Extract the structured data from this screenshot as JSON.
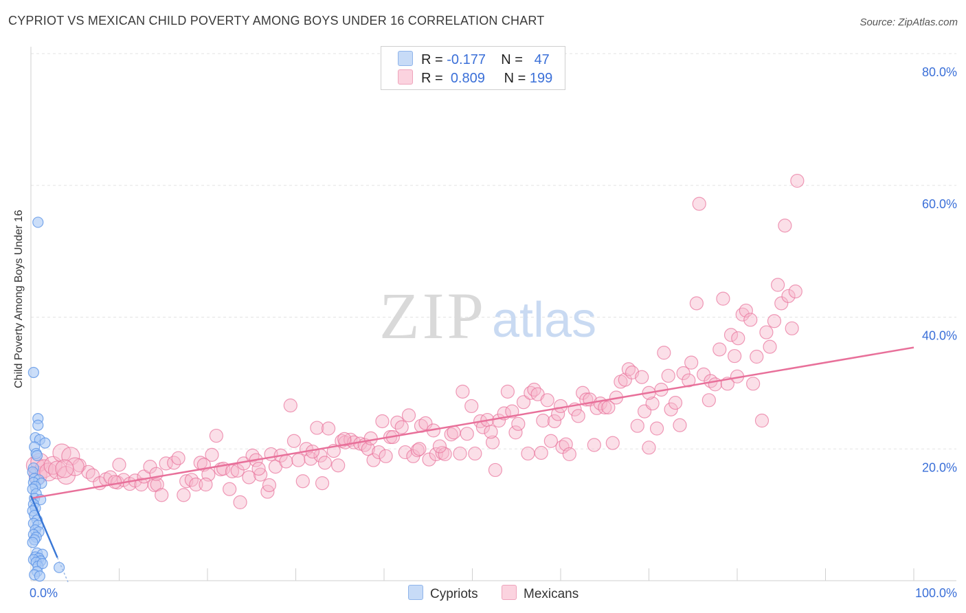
{
  "title": "CYPRIOT VS MEXICAN CHILD POVERTY AMONG BOYS UNDER 16 CORRELATION CHART",
  "source": "Source: ZipAtlas.com",
  "watermark": {
    "zip": "ZIP",
    "atlas": "atlas"
  },
  "legend": {
    "rows": [
      {
        "r_label": "R =",
        "r_value": "-0.177",
        "n_label": "N =",
        "n_value": "47",
        "color": "#a9c8f5"
      },
      {
        "r_label": "R =",
        "r_value": "0.809",
        "n_label": "N =",
        "n_value": "199",
        "color": "#f7b9cc"
      }
    ]
  },
  "bottom_legend": [
    {
      "label": "Cypriots",
      "color": "#a9c8f5"
    },
    {
      "label": "Mexicans",
      "color": "#f7b9cc"
    }
  ],
  "chart_data": {
    "type": "scatter",
    "title": "CYPRIOT VS MEXICAN CHILD POVERTY AMONG BOYS UNDER 16 CORRELATION CHART",
    "xlabel": "",
    "ylabel": "Child Poverty Among Boys Under 16",
    "xlim": [
      0,
      100
    ],
    "ylim": [
      0,
      80
    ],
    "x_tick_labels": [
      "0.0%",
      "100.0%"
    ],
    "y_ticks": [
      20,
      40,
      60,
      80
    ],
    "y_tick_labels": [
      "20.0%",
      "40.0%",
      "60.0%",
      "80.0%"
    ],
    "grid": true,
    "legend_position": "top-center",
    "series": [
      {
        "name": "Cypriots",
        "color": "#5b93e6",
        "fill": "#a9c8f5",
        "r": -0.177,
        "n": 47,
        "trend": {
          "x": [
            0.0,
            3.0
          ],
          "y": [
            12.9,
            3.5
          ]
        },
        "points": [
          [
            0.8,
            54.4
          ],
          [
            0.3,
            31.6
          ],
          [
            0.8,
            24.6
          ],
          [
            0.8,
            23.6
          ],
          [
            0.5,
            21.7
          ],
          [
            1.0,
            21.4
          ],
          [
            1.6,
            20.9
          ],
          [
            0.4,
            20.3
          ],
          [
            0.6,
            19.3
          ],
          [
            0.7,
            19.0
          ],
          [
            0.3,
            17.1
          ],
          [
            0.2,
            16.5
          ],
          [
            0.4,
            15.5
          ],
          [
            0.9,
            15.3
          ],
          [
            0.3,
            14.9
          ],
          [
            1.2,
            14.8
          ],
          [
            0.5,
            14.3
          ],
          [
            0.2,
            13.9
          ],
          [
            0.6,
            13.2
          ],
          [
            0.4,
            12.5
          ],
          [
            1.1,
            12.3
          ],
          [
            0.3,
            11.6
          ],
          [
            0.5,
            11.0
          ],
          [
            0.2,
            10.6
          ],
          [
            0.4,
            9.9
          ],
          [
            0.7,
            9.2
          ],
          [
            0.3,
            8.7
          ],
          [
            0.8,
            8.4
          ],
          [
            0.5,
            7.7
          ],
          [
            0.9,
            7.4
          ],
          [
            0.3,
            7.0
          ],
          [
            0.6,
            6.6
          ],
          [
            0.4,
            6.2
          ],
          [
            0.2,
            5.8
          ],
          [
            0.7,
            4.2
          ],
          [
            1.3,
            4.0
          ],
          [
            0.5,
            3.6
          ],
          [
            0.9,
            3.4
          ],
          [
            0.3,
            3.2
          ],
          [
            1.1,
            3.0
          ],
          [
            0.6,
            2.8
          ],
          [
            0.8,
            2.2
          ],
          [
            1.3,
            2.6
          ],
          [
            3.2,
            2.0
          ],
          [
            0.7,
            1.4
          ],
          [
            0.4,
            0.9
          ],
          [
            1.0,
            0.7
          ]
        ]
      },
      {
        "name": "Mexicans",
        "color": "#e8709a",
        "fill": "#f7b9cc",
        "r": 0.809,
        "n": 199,
        "trend": {
          "x": [
            0.0,
            100.0
          ],
          "y": [
            12.5,
            35.4
          ]
        },
        "points": [
          [
            0.5,
            17.5
          ],
          [
            0.8,
            16.0
          ],
          [
            1.0,
            18.0
          ],
          [
            1.5,
            17.0
          ],
          [
            2.0,
            16.5
          ],
          [
            2.5,
            17.5
          ],
          [
            3.0,
            16.8
          ],
          [
            3.5,
            19.4
          ],
          [
            4.0,
            16.0
          ],
          [
            4.5,
            18.9
          ],
          [
            5.5,
            17.5
          ],
          [
            6.5,
            16.5
          ],
          [
            7.0,
            16.0
          ],
          [
            7.8,
            14.8
          ],
          [
            8.5,
            15.4
          ],
          [
            9.0,
            15.7
          ],
          [
            9.8,
            14.9
          ],
          [
            10.0,
            17.6
          ],
          [
            10.5,
            15.3
          ],
          [
            11.2,
            14.7
          ],
          [
            11.8,
            15.2
          ],
          [
            12.5,
            14.6
          ],
          [
            12.8,
            15.8
          ],
          [
            13.5,
            17.3
          ],
          [
            14.0,
            14.5
          ],
          [
            14.3,
            14.6
          ],
          [
            14.8,
            13.0
          ],
          [
            15.3,
            17.8
          ],
          [
            16.2,
            17.9
          ],
          [
            16.7,
            18.6
          ],
          [
            17.3,
            13.0
          ],
          [
            17.6,
            15.1
          ],
          [
            18.2,
            15.3
          ],
          [
            18.7,
            14.6
          ],
          [
            19.2,
            17.9
          ],
          [
            19.6,
            17.6
          ],
          [
            20.1,
            16.1
          ],
          [
            20.5,
            19.1
          ],
          [
            21.0,
            22.0
          ],
          [
            21.5,
            16.9
          ],
          [
            21.8,
            17.0
          ],
          [
            22.5,
            13.9
          ],
          [
            22.8,
            16.6
          ],
          [
            23.4,
            16.7
          ],
          [
            23.7,
            11.9
          ],
          [
            24.1,
            17.8
          ],
          [
            24.7,
            15.7
          ],
          [
            25.1,
            19.0
          ],
          [
            25.5,
            18.3
          ],
          [
            26.0,
            16.1
          ],
          [
            26.8,
            13.5
          ],
          [
            27.2,
            19.2
          ],
          [
            27.7,
            17.3
          ],
          [
            28.3,
            19.0
          ],
          [
            28.9,
            18.1
          ],
          [
            29.4,
            26.6
          ],
          [
            29.8,
            21.2
          ],
          [
            30.3,
            18.3
          ],
          [
            30.8,
            15.1
          ],
          [
            31.2,
            20.0
          ],
          [
            31.7,
            18.5
          ],
          [
            32.4,
            23.2
          ],
          [
            32.8,
            19.0
          ],
          [
            33.3,
            17.9
          ],
          [
            33.7,
            23.1
          ],
          [
            34.3,
            19.7
          ],
          [
            34.8,
            17.5
          ],
          [
            35.2,
            21.2
          ],
          [
            35.6,
            21.0
          ],
          [
            36.2,
            21.4
          ],
          [
            36.6,
            21.0
          ],
          [
            37.3,
            20.8
          ],
          [
            37.8,
            20.6
          ],
          [
            38.2,
            20.0
          ],
          [
            38.8,
            18.3
          ],
          [
            39.4,
            19.5
          ],
          [
            39.8,
            24.2
          ],
          [
            40.2,
            18.9
          ],
          [
            40.7,
            21.8
          ],
          [
            41.0,
            21.8
          ],
          [
            41.5,
            24.0
          ],
          [
            42.0,
            23.3
          ],
          [
            42.4,
            19.5
          ],
          [
            42.8,
            25.1
          ],
          [
            43.3,
            18.9
          ],
          [
            43.8,
            19.8
          ],
          [
            44.2,
            23.5
          ],
          [
            44.7,
            23.9
          ],
          [
            45.1,
            18.4
          ],
          [
            45.6,
            22.8
          ],
          [
            45.9,
            19.2
          ],
          [
            46.6,
            19.4
          ],
          [
            46.9,
            19.2
          ],
          [
            47.6,
            22.2
          ],
          [
            47.9,
            22.5
          ],
          [
            48.6,
            19.3
          ],
          [
            48.9,
            28.7
          ],
          [
            49.4,
            22.3
          ],
          [
            49.9,
            26.5
          ],
          [
            50.3,
            19.3
          ],
          [
            50.9,
            24.2
          ],
          [
            51.2,
            23.3
          ],
          [
            51.7,
            24.4
          ],
          [
            52.3,
            21.0
          ],
          [
            52.6,
            16.8
          ],
          [
            53.0,
            24.3
          ],
          [
            53.6,
            25.4
          ],
          [
            54.0,
            28.7
          ],
          [
            54.5,
            25.7
          ],
          [
            54.9,
            22.5
          ],
          [
            55.2,
            23.8
          ],
          [
            55.8,
            27.1
          ],
          [
            56.3,
            19.3
          ],
          [
            56.6,
            28.5
          ],
          [
            57.0,
            29.0
          ],
          [
            57.4,
            28.3
          ],
          [
            58.0,
            24.3
          ],
          [
            58.5,
            27.4
          ],
          [
            58.9,
            21.2
          ],
          [
            59.3,
            24.2
          ],
          [
            59.7,
            25.3
          ],
          [
            60.2,
            20.3
          ],
          [
            60.6,
            20.7
          ],
          [
            61.0,
            19.2
          ],
          [
            61.6,
            26.0
          ],
          [
            62.0,
            25.0
          ],
          [
            62.5,
            28.5
          ],
          [
            62.9,
            27.5
          ],
          [
            63.3,
            27.5
          ],
          [
            63.8,
            20.6
          ],
          [
            64.1,
            26.2
          ],
          [
            64.5,
            26.9
          ],
          [
            65.0,
            26.3
          ],
          [
            65.4,
            26.3
          ],
          [
            65.9,
            20.9
          ],
          [
            66.3,
            27.8
          ],
          [
            66.8,
            30.2
          ],
          [
            67.3,
            30.5
          ],
          [
            67.7,
            32.1
          ],
          [
            68.1,
            31.6
          ],
          [
            68.7,
            23.5
          ],
          [
            69.2,
            30.9
          ],
          [
            69.5,
            25.7
          ],
          [
            70.0,
            20.2
          ],
          [
            70.4,
            26.9
          ],
          [
            70.9,
            23.1
          ],
          [
            71.4,
            29.0
          ],
          [
            71.7,
            34.6
          ],
          [
            72.2,
            31.1
          ],
          [
            72.5,
            26.0
          ],
          [
            73.0,
            27.0
          ],
          [
            73.5,
            23.6
          ],
          [
            73.9,
            31.5
          ],
          [
            74.5,
            30.4
          ],
          [
            74.8,
            33.1
          ],
          [
            75.4,
            42.1
          ],
          [
            75.7,
            57.2
          ],
          [
            76.2,
            31.3
          ],
          [
            76.8,
            27.4
          ],
          [
            77.0,
            30.3
          ],
          [
            77.5,
            29.8
          ],
          [
            78.0,
            35.1
          ],
          [
            78.4,
            42.8
          ],
          [
            78.9,
            29.9
          ],
          [
            79.3,
            37.3
          ],
          [
            79.7,
            34.1
          ],
          [
            80.1,
            36.8
          ],
          [
            80.6,
            40.4
          ],
          [
            81.0,
            41.0
          ],
          [
            81.5,
            39.6
          ],
          [
            81.8,
            29.9
          ],
          [
            82.2,
            34.0
          ],
          [
            82.8,
            24.3
          ],
          [
            83.3,
            37.7
          ],
          [
            83.7,
            35.5
          ],
          [
            84.2,
            39.4
          ],
          [
            84.6,
            44.9
          ],
          [
            85.0,
            42.1
          ],
          [
            85.4,
            53.9
          ],
          [
            85.8,
            43.2
          ],
          [
            86.2,
            38.3
          ],
          [
            86.6,
            43.9
          ],
          [
            86.8,
            60.7
          ],
          [
            35.5,
            21.5
          ],
          [
            5.0,
            17.3
          ],
          [
            3.8,
            17.0
          ],
          [
            9.5,
            15.0
          ],
          [
            33.0,
            14.8
          ],
          [
            27.0,
            14.5
          ],
          [
            44.0,
            20.0
          ],
          [
            60.0,
            26.5
          ],
          [
            70.0,
            28.5
          ],
          [
            80.0,
            31.0
          ],
          [
            57.8,
            19.4
          ],
          [
            14.2,
            16.2
          ],
          [
            19.8,
            14.6
          ],
          [
            25.8,
            17.0
          ],
          [
            31.9,
            19.6
          ],
          [
            38.5,
            21.6
          ],
          [
            46.3,
            20.4
          ],
          [
            52.1,
            22.6
          ]
        ]
      }
    ]
  }
}
